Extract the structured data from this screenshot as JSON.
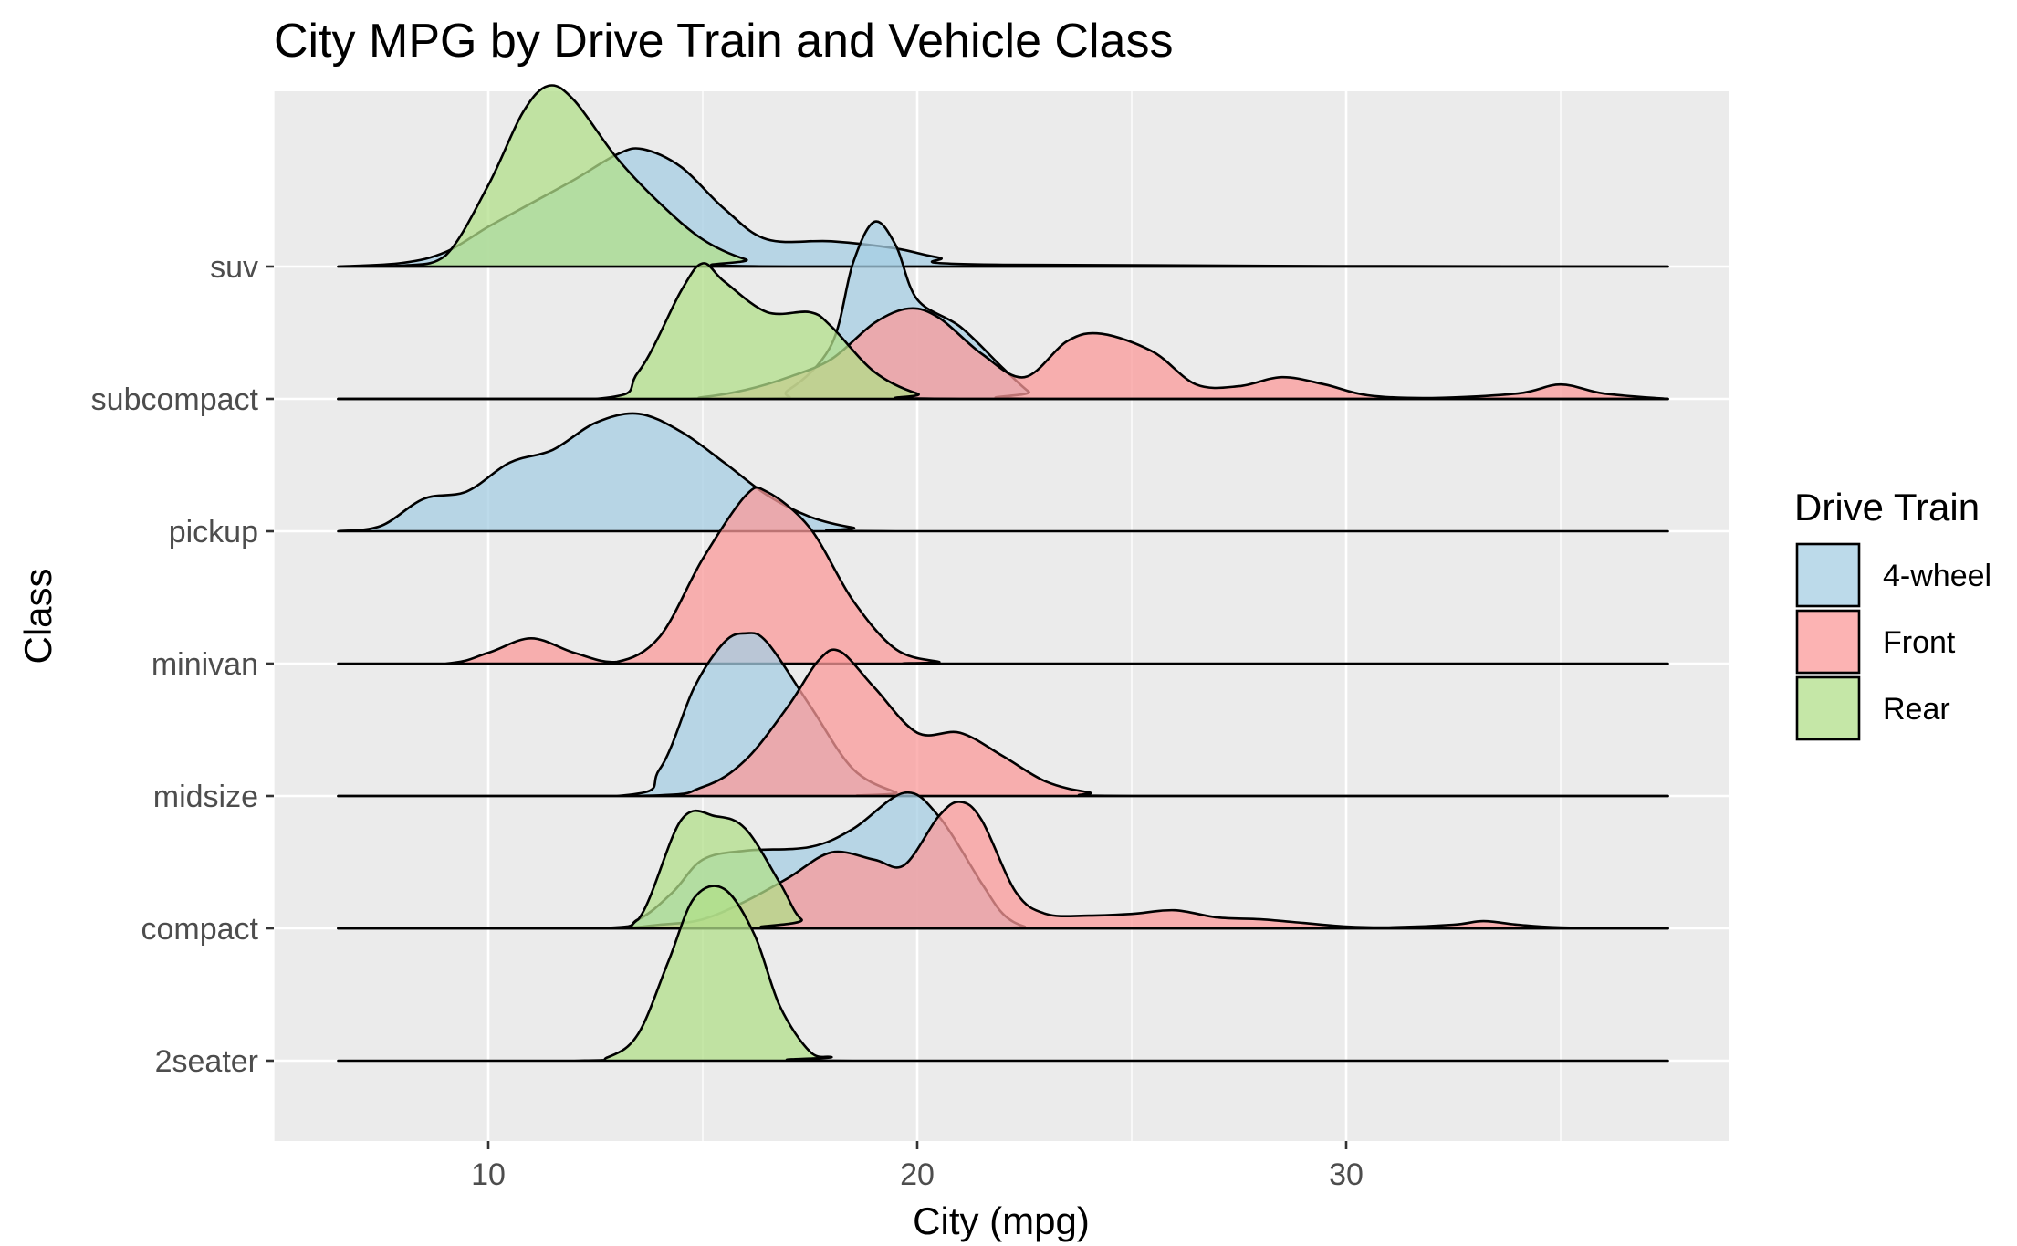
{
  "chart_data": {
    "type": "ridgeline",
    "title": "City MPG by Drive Train and Vehicle Class",
    "xlabel": "City (mpg)",
    "ylabel": "Class",
    "xlim": [
      5,
      39
    ],
    "x_ticks": [
      10,
      20,
      30
    ],
    "categories": [
      "2seater",
      "compact",
      "midsize",
      "minivan",
      "pickup",
      "subcompact",
      "suv"
    ],
    "grid": true,
    "legend": {
      "title": "Drive Train",
      "position": "right",
      "entries": [
        {
          "label": "4-wheel",
          "color": "#a6cee3"
        },
        {
          "label": "Front",
          "color": "#fb9a99"
        },
        {
          "label": "Rear",
          "color": "#b2df8a"
        }
      ]
    },
    "series": [
      {
        "category": "suv",
        "drive": "4-wheel",
        "points": [
          [
            6.5,
            0
          ],
          [
            8,
            0.02
          ],
          [
            9,
            0.08
          ],
          [
            10,
            0.22
          ],
          [
            11,
            0.35
          ],
          [
            12,
            0.48
          ],
          [
            13,
            0.62
          ],
          [
            13.6,
            0.65
          ],
          [
            14.5,
            0.55
          ],
          [
            15.5,
            0.32
          ],
          [
            16.5,
            0.15
          ],
          [
            18,
            0.14
          ],
          [
            19.5,
            0.1
          ],
          [
            20.5,
            0.05
          ],
          [
            22,
            0.01
          ],
          [
            37.5,
            0
          ]
        ]
      },
      {
        "category": "suv",
        "drive": "Rear",
        "points": [
          [
            6.5,
            0
          ],
          [
            8,
            0.005
          ],
          [
            9,
            0.06
          ],
          [
            10,
            0.45
          ],
          [
            10.8,
            0.85
          ],
          [
            11.4,
            1.0
          ],
          [
            12,
            0.92
          ],
          [
            13,
            0.6
          ],
          [
            14,
            0.35
          ],
          [
            15,
            0.15
          ],
          [
            16,
            0.04
          ],
          [
            17,
            0
          ],
          [
            37.5,
            0
          ]
        ]
      },
      {
        "category": "subcompact",
        "drive": "4-wheel",
        "points": [
          [
            6.5,
            0
          ],
          [
            16,
            0
          ],
          [
            17,
            0.05
          ],
          [
            18,
            0.3
          ],
          [
            18.5,
            0.75
          ],
          [
            19.0,
            0.98
          ],
          [
            19.5,
            0.85
          ],
          [
            20,
            0.55
          ],
          [
            21,
            0.4
          ],
          [
            22,
            0.17
          ],
          [
            22.6,
            0.04
          ],
          [
            23,
            0
          ],
          [
            37.5,
            0
          ]
        ]
      },
      {
        "category": "subcompact",
        "drive": "Front",
        "points": [
          [
            6.5,
            0
          ],
          [
            14,
            0
          ],
          [
            15,
            0.01
          ],
          [
            16,
            0.05
          ],
          [
            17,
            0.12
          ],
          [
            18,
            0.22
          ],
          [
            19,
            0.42
          ],
          [
            19.8,
            0.5
          ],
          [
            20.5,
            0.45
          ],
          [
            21.5,
            0.25
          ],
          [
            22.5,
            0.12
          ],
          [
            23.5,
            0.32
          ],
          [
            24.3,
            0.36
          ],
          [
            25.5,
            0.26
          ],
          [
            26.5,
            0.08
          ],
          [
            27.5,
            0.07
          ],
          [
            28.5,
            0.12
          ],
          [
            29.5,
            0.08
          ],
          [
            30.5,
            0.02
          ],
          [
            32,
            0.005
          ],
          [
            34,
            0.03
          ],
          [
            35,
            0.08
          ],
          [
            36,
            0.03
          ],
          [
            37.5,
            0
          ]
        ]
      },
      {
        "category": "subcompact",
        "drive": "Rear",
        "points": [
          [
            6.5,
            0
          ],
          [
            12.5,
            0
          ],
          [
            13.5,
            0.15
          ],
          [
            14.5,
            0.6
          ],
          [
            15.0,
            0.75
          ],
          [
            15.5,
            0.65
          ],
          [
            16.5,
            0.48
          ],
          [
            17.5,
            0.48
          ],
          [
            18,
            0.4
          ],
          [
            19,
            0.15
          ],
          [
            20,
            0.03
          ],
          [
            21,
            0
          ],
          [
            37.5,
            0
          ]
        ]
      },
      {
        "category": "pickup",
        "drive": "4-wheel",
        "points": [
          [
            6.5,
            0
          ],
          [
            7.5,
            0.03
          ],
          [
            8.5,
            0.18
          ],
          [
            9.5,
            0.22
          ],
          [
            10.5,
            0.38
          ],
          [
            11.5,
            0.45
          ],
          [
            12.5,
            0.6
          ],
          [
            13.5,
            0.65
          ],
          [
            14.5,
            0.55
          ],
          [
            15.5,
            0.38
          ],
          [
            16.5,
            0.2
          ],
          [
            17.5,
            0.08
          ],
          [
            18.5,
            0.02
          ],
          [
            19.5,
            0
          ],
          [
            37.5,
            0
          ]
        ]
      },
      {
        "category": "minivan",
        "drive": "Front",
        "points": [
          [
            6.5,
            0
          ],
          [
            9,
            0
          ],
          [
            10,
            0.06
          ],
          [
            11,
            0.14
          ],
          [
            12,
            0.06
          ],
          [
            13,
            0.01
          ],
          [
            14,
            0.15
          ],
          [
            15,
            0.58
          ],
          [
            16,
            0.93
          ],
          [
            16.5,
            0.95
          ],
          [
            17.5,
            0.75
          ],
          [
            18.5,
            0.35
          ],
          [
            19.5,
            0.08
          ],
          [
            20.5,
            0.01
          ],
          [
            21,
            0
          ],
          [
            37.5,
            0
          ]
        ]
      },
      {
        "category": "midsize",
        "drive": "4-wheel",
        "points": [
          [
            6.5,
            0
          ],
          [
            13,
            0
          ],
          [
            14,
            0.15
          ],
          [
            14.8,
            0.6
          ],
          [
            15.5,
            0.85
          ],
          [
            16.0,
            0.9
          ],
          [
            16.5,
            0.85
          ],
          [
            17.5,
            0.5
          ],
          [
            18.5,
            0.15
          ],
          [
            19.5,
            0.02
          ],
          [
            20,
            0
          ],
          [
            37.5,
            0
          ]
        ]
      },
      {
        "category": "midsize",
        "drive": "Front",
        "points": [
          [
            6.5,
            0
          ],
          [
            13.5,
            0
          ],
          [
            15,
            0.05
          ],
          [
            16,
            0.2
          ],
          [
            17,
            0.5
          ],
          [
            17.7,
            0.75
          ],
          [
            18.2,
            0.8
          ],
          [
            19,
            0.6
          ],
          [
            20,
            0.35
          ],
          [
            21,
            0.35
          ],
          [
            22,
            0.22
          ],
          [
            23,
            0.08
          ],
          [
            24,
            0.02
          ],
          [
            25,
            0
          ],
          [
            37.5,
            0
          ]
        ]
      },
      {
        "category": "compact",
        "drive": "4-wheel",
        "points": [
          [
            6.5,
            0
          ],
          [
            12.5,
            0
          ],
          [
            13.5,
            0.05
          ],
          [
            14.3,
            0.2
          ],
          [
            15,
            0.38
          ],
          [
            16,
            0.43
          ],
          [
            17.5,
            0.45
          ],
          [
            18.5,
            0.55
          ],
          [
            19.7,
            0.75
          ],
          [
            20.5,
            0.62
          ],
          [
            21.5,
            0.25
          ],
          [
            22,
            0.08
          ],
          [
            22.5,
            0.01
          ],
          [
            23,
            0
          ],
          [
            37.5,
            0
          ]
        ]
      },
      {
        "category": "compact",
        "drive": "Front",
        "points": [
          [
            6.5,
            0
          ],
          [
            12.5,
            0
          ],
          [
            14,
            0.02
          ],
          [
            15,
            0.05
          ],
          [
            16,
            0.15
          ],
          [
            17,
            0.28
          ],
          [
            18,
            0.42
          ],
          [
            19,
            0.38
          ],
          [
            19.7,
            0.35
          ],
          [
            20.5,
            0.62
          ],
          [
            21.0,
            0.7
          ],
          [
            21.5,
            0.6
          ],
          [
            22.3,
            0.2
          ],
          [
            23,
            0.08
          ],
          [
            24,
            0.07
          ],
          [
            25,
            0.08
          ],
          [
            26,
            0.1
          ],
          [
            27,
            0.06
          ],
          [
            28,
            0.05
          ],
          [
            29,
            0.03
          ],
          [
            30,
            0.01
          ],
          [
            31,
            0.005
          ],
          [
            32.5,
            0.02
          ],
          [
            33.2,
            0.04
          ],
          [
            34,
            0.02
          ],
          [
            35,
            0.005
          ],
          [
            37.5,
            0
          ]
        ]
      },
      {
        "category": "compact",
        "drive": "Rear",
        "points": [
          [
            6.5,
            0
          ],
          [
            12.5,
            0
          ],
          [
            13.5,
            0.05
          ],
          [
            14.5,
            0.6
          ],
          [
            15.3,
            0.62
          ],
          [
            16,
            0.55
          ],
          [
            16.8,
            0.25
          ],
          [
            17.3,
            0.05
          ],
          [
            18,
            0
          ],
          [
            37.5,
            0
          ]
        ]
      },
      {
        "category": "2seater",
        "drive": "Rear",
        "points": [
          [
            6.5,
            0
          ],
          [
            12,
            0
          ],
          [
            12.8,
            0.02
          ],
          [
            13.5,
            0.15
          ],
          [
            14.2,
            0.55
          ],
          [
            14.8,
            0.9
          ],
          [
            15.5,
            0.95
          ],
          [
            16.2,
            0.7
          ],
          [
            16.8,
            0.3
          ],
          [
            17.5,
            0.05
          ],
          [
            18,
            0.02
          ],
          [
            18.5,
            0
          ],
          [
            37.5,
            0
          ]
        ]
      }
    ]
  }
}
